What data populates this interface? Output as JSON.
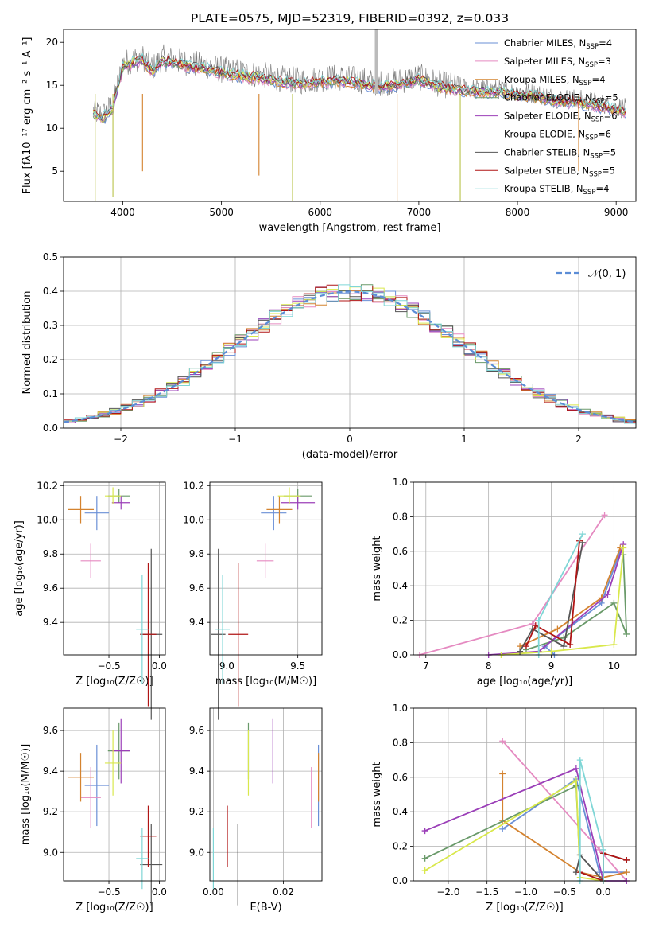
{
  "title": "PLATE=0575, MJD=52319, FIBERID=0392, z=0.033",
  "colors": [
    "#6a8fd6",
    "#e58ac1",
    "#d4832f",
    "#6a9a6a",
    "#9b3fb8",
    "#d9e84c",
    "#555555",
    "#b01515",
    "#7fd6d6"
  ],
  "chart_data": [
    {
      "id": "spectrum",
      "type": "line",
      "xlabel": "wavelength [Angstrom, rest frame]",
      "ylabel": "Flux [fλ10⁻¹⁷ erg cm⁻² s⁻¹ A⁻¹]",
      "xlim": [
        3400,
        9200
      ],
      "ylim": [
        1.5,
        21.5
      ],
      "xticks": [
        4000,
        5000,
        6000,
        7000,
        8000,
        9000
      ],
      "yticks": [
        5,
        10,
        15,
        20
      ],
      "series": [
        {
          "name": "Chabrier MILES, N_SSP=4",
          "name_main": "Chabrier MILES, N",
          "name_sub": "SSP",
          "name_tail": "=4"
        },
        {
          "name": "Salpeter MILES, N_SSP=3",
          "name_main": "Salpeter MILES, N",
          "name_sub": "SSP",
          "name_tail": "=3"
        },
        {
          "name": "Kroupa MILES, N_SSP=4",
          "name_main": "Kroupa MILES, N",
          "name_sub": "SSP",
          "name_tail": "=4"
        },
        {
          "name": "Chabrier ELODIE, N_SSP=5",
          "name_main": "Chabrier ELODIE, N",
          "name_sub": "SSP",
          "name_tail": "=5"
        },
        {
          "name": "Salpeter ELODIE, N_SSP=6",
          "name_main": "Salpeter ELODIE, N",
          "name_sub": "SSP",
          "name_tail": "=6"
        },
        {
          "name": "Kroupa ELODIE, N_SSP=6",
          "name_main": "Kroupa ELODIE, N",
          "name_sub": "SSP",
          "name_tail": "=6"
        },
        {
          "name": "Chabrier STELIB, N_SSP=5",
          "name_main": "Chabrier STELIB, N",
          "name_sub": "SSP",
          "name_tail": "=5"
        },
        {
          "name": "Salpeter STELIB, N_SSP=5",
          "name_main": "Salpeter STELIB, N",
          "name_sub": "SSP",
          "name_tail": "=5"
        },
        {
          "name": "Kroupa STELIB, N_SSP=4",
          "name_main": "Kroupa STELIB, N",
          "name_sub": "SSP",
          "name_tail": "=4"
        }
      ],
      "envelope": [
        [
          3700,
          12.0
        ],
        [
          3800,
          11.5
        ],
        [
          3900,
          12.8
        ],
        [
          4000,
          17.5
        ],
        [
          4100,
          18.0
        ],
        [
          4200,
          18.3
        ],
        [
          4300,
          17.0
        ],
        [
          4400,
          18.2
        ],
        [
          4500,
          18.0
        ],
        [
          4700,
          17.5
        ],
        [
          4900,
          17.2
        ],
        [
          5000,
          16.8
        ],
        [
          5200,
          16.5
        ],
        [
          5400,
          16.2
        ],
        [
          5600,
          15.8
        ],
        [
          5800,
          15.5
        ],
        [
          6000,
          15.8
        ],
        [
          6200,
          15.9
        ],
        [
          6400,
          15.6
        ],
        [
          6600,
          15.2
        ],
        [
          6800,
          15.5
        ],
        [
          7000,
          16.0
        ],
        [
          7200,
          15.2
        ],
        [
          7400,
          14.8
        ],
        [
          7600,
          14.6
        ],
        [
          7800,
          14.5
        ],
        [
          8000,
          14.3
        ],
        [
          8200,
          14.0
        ],
        [
          8400,
          13.5
        ],
        [
          8600,
          13.4
        ],
        [
          8800,
          13.0
        ],
        [
          9000,
          12.5
        ],
        [
          9100,
          12.3
        ]
      ]
    },
    {
      "id": "residual_hist",
      "type": "histogram",
      "xlabel": "(data-model)/error",
      "ylabel": "Normed distribution",
      "xlim": [
        -2.5,
        2.5
      ],
      "ylim": [
        0,
        0.5
      ],
      "xticks": [
        -2,
        -1,
        0,
        1,
        2
      ],
      "yticks": [
        0.0,
        0.1,
        0.2,
        0.3,
        0.4,
        0.5
      ],
      "legend": "𝒩(0, 1)",
      "gaussian": {
        "mean": 0,
        "sigma": 1
      },
      "bin_width": 0.1
    },
    {
      "id": "age_vs_Z",
      "type": "errorbar",
      "xlabel": "Z [log₁₀(Z/Z☉)]",
      "ylabel": "age  [log₁₀(age/yr)]",
      "xlim": [
        -0.95,
        0.06
      ],
      "ylim": [
        9.21,
        10.22
      ],
      "xticks": [
        -0.5,
        0.0
      ],
      "yticks": [
        9.4,
        9.6,
        9.8,
        10.0,
        10.2
      ]
    },
    {
      "id": "age_vs_mass",
      "type": "errorbar",
      "xlabel": "mass [log₁₀(M/M☉)]",
      "xlim": [
        8.88,
        9.67
      ],
      "ylim": [
        9.21,
        10.22
      ],
      "xticks": [
        9.0,
        9.5
      ],
      "yticks": [
        9.4,
        9.6,
        9.8,
        10.0,
        10.2
      ]
    },
    {
      "id": "weight_vs_age",
      "type": "line",
      "xlabel": "age  [log₁₀(age/yr)]",
      "ylabel": "mass weight",
      "xlim": [
        6.8,
        10.35
      ],
      "ylim": [
        0,
        1.0
      ],
      "xticks": [
        7,
        8,
        9,
        10
      ],
      "yticks": [
        0.0,
        0.2,
        0.4,
        0.6,
        0.8,
        1.0
      ]
    },
    {
      "id": "mass_vs_Z",
      "type": "errorbar",
      "xlabel": "Z [log₁₀(Z/Z☉)]",
      "ylabel": "mass [log₁₀(M/M☉)]",
      "xlim": [
        -0.95,
        0.06
      ],
      "ylim": [
        8.86,
        9.71
      ],
      "xticks": [
        -0.5,
        0.0
      ],
      "yticks": [
        9.0,
        9.2,
        9.4,
        9.6
      ]
    },
    {
      "id": "mass_vs_ebv",
      "type": "errorbar",
      "xlabel": "E(B-V)",
      "xlim": [
        -0.001,
        0.031
      ],
      "ylim": [
        8.86,
        9.71
      ],
      "xticks": [
        0.0,
        0.02
      ],
      "yticks": [
        9.0,
        9.2,
        9.4,
        9.6
      ]
    },
    {
      "id": "weight_vs_Z",
      "type": "line",
      "xlabel": "Z [log₁₀(Z/Z☉)]",
      "ylabel": "mass weight",
      "xlim": [
        -2.45,
        0.42
      ],
      "ylim": [
        0,
        1.0
      ],
      "xticks": [
        -2.0,
        -1.5,
        -1.0,
        -0.5,
        0.0
      ],
      "yticks": [
        0.0,
        0.2,
        0.4,
        0.6,
        0.8,
        1.0
      ]
    }
  ],
  "errorbars": {
    "Z": [
      -0.62,
      -0.68,
      -0.78,
      -0.4,
      -0.38,
      -0.46,
      -0.08,
      -0.11,
      -0.17
    ],
    "Zerr": [
      0.12,
      0.1,
      0.13,
      0.11,
      0.09,
      0.08,
      0.11,
      0.08,
      0.06
    ],
    "age": [
      10.04,
      9.76,
      10.06,
      10.14,
      10.1,
      10.14,
      9.33,
      9.33,
      9.36
    ],
    "ageerr": [
      0.1,
      0.1,
      0.08,
      0.04,
      0.04,
      0.05,
      0.5,
      0.42,
      0.32
    ],
    "mass": [
      9.33,
      9.27,
      9.37,
      9.5,
      9.5,
      9.44,
      8.94,
      9.08,
      8.97
    ],
    "masserr": [
      0.2,
      0.15,
      0.12,
      0.14,
      0.16,
      0.16,
      0.2,
      0.15,
      0.15
    ],
    "masserrx": [
      0.09,
      0.06,
      0.09,
      0.1,
      0.12,
      0.08,
      0.05,
      0.07,
      0.05
    ],
    "ebv": [
      0.03,
      0.028,
      0.03,
      0.01,
      0.017,
      0.01,
      0.007,
      0.004,
      0.0
    ],
    "ebverrm": [
      0.09,
      0.1,
      0.12,
      0.15,
      0.15,
      0.16,
      0.11,
      0.11,
      0.12
    ]
  },
  "weights_age": [
    [
      [
        9.05,
        0.0
      ],
      [
        8.9,
        0.05
      ],
      [
        9.8,
        0.3
      ],
      [
        10.1,
        0.6
      ]
    ],
    [
      [
        6.9,
        0.0
      ],
      [
        8.7,
        0.18
      ],
      [
        9.85,
        0.81
      ]
    ],
    [
      [
        8.5,
        0.05
      ],
      [
        9.1,
        0.15
      ],
      [
        9.8,
        0.33
      ],
      [
        10.1,
        0.62
      ]
    ],
    [
      [
        8.6,
        0.03
      ],
      [
        9.2,
        0.1
      ],
      [
        10.0,
        0.3
      ],
      [
        10.2,
        0.12
      ],
      [
        10.15,
        0.58
      ]
    ],
    [
      [
        8.0,
        0.0
      ],
      [
        8.8,
        0.02
      ],
      [
        9.9,
        0.35
      ],
      [
        10.15,
        0.64
      ]
    ],
    [
      [
        8.2,
        0.0
      ],
      [
        9.0,
        0.02
      ],
      [
        10.0,
        0.06
      ],
      [
        10.15,
        0.62
      ]
    ],
    [
      [
        8.5,
        0.02
      ],
      [
        8.7,
        0.15
      ],
      [
        9.2,
        0.05
      ],
      [
        9.5,
        0.65
      ]
    ],
    [
      [
        8.6,
        0.05
      ],
      [
        8.75,
        0.17
      ],
      [
        9.3,
        0.06
      ],
      [
        9.45,
        0.66
      ]
    ],
    [
      [
        8.8,
        0.0
      ],
      [
        8.8,
        0.2
      ],
      [
        9.5,
        0.7
      ]
    ]
  ],
  "weights_Z": [
    [
      [
        -1.3,
        0.3
      ],
      [
        -0.35,
        0.59
      ],
      [
        -0.05,
        0.05
      ],
      [
        0.3,
        0.05
      ]
    ],
    [
      [
        -1.3,
        0.81
      ],
      [
        -0.05,
        0.18
      ],
      [
        0.3,
        0.0
      ]
    ],
    [
      [
        -1.3,
        0.62
      ],
      [
        -1.3,
        0.35
      ],
      [
        -0.3,
        0.05
      ],
      [
        0.0,
        0.02
      ],
      [
        0.3,
        0.05
      ]
    ],
    [
      [
        -2.3,
        0.13
      ],
      [
        -0.35,
        0.55
      ],
      [
        -0.3,
        0.05
      ],
      [
        0.0,
        0.0
      ]
    ],
    [
      [
        -2.3,
        0.29
      ],
      [
        -0.35,
        0.65
      ],
      [
        0.0,
        0.0
      ],
      [
        0.3,
        0.0
      ]
    ],
    [
      [
        -2.3,
        0.06
      ],
      [
        -0.35,
        0.58
      ],
      [
        -0.3,
        0.02
      ],
      [
        0.0,
        0.0
      ]
    ],
    [
      [
        -0.35,
        0.05
      ],
      [
        -0.3,
        0.15
      ],
      [
        0.0,
        0.0
      ],
      [
        0.0,
        0.16
      ],
      [
        0.3,
        0.12
      ]
    ],
    [
      [
        -0.3,
        0.05
      ],
      [
        0.0,
        0.0
      ],
      [
        0.0,
        0.16
      ],
      [
        0.3,
        0.12
      ]
    ],
    [
      [
        -0.3,
        0.0
      ],
      [
        -0.3,
        0.7
      ],
      [
        0.0,
        0.18
      ],
      [
        0.0,
        0.0
      ]
    ]
  ]
}
